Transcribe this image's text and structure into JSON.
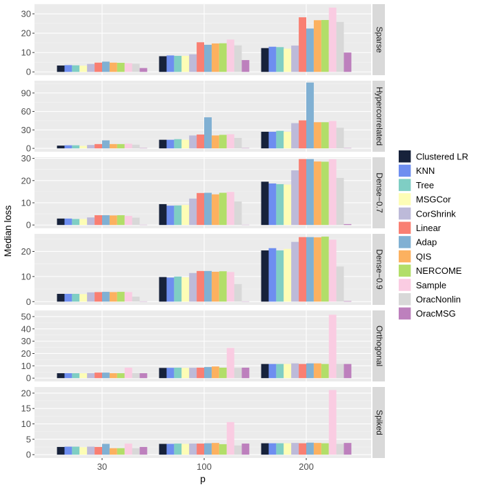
{
  "chart_data": {
    "type": "bar",
    "title": "",
    "xlabel": "p",
    "ylabel": "Median loss",
    "categories": [
      "30",
      "100",
      "200"
    ],
    "series": [
      {
        "name": "Clustered LR",
        "color": "#17223B"
      },
      {
        "name": "KNN",
        "color": "#6E8EF0"
      },
      {
        "name": "Tree",
        "color": "#7FCEC4"
      },
      {
        "name": "MSGCor",
        "color": "#FDFDB6"
      },
      {
        "name": "CorShrink",
        "color": "#BDBAD9"
      },
      {
        "name": "Linear",
        "color": "#F97F72"
      },
      {
        "name": "Adap",
        "color": "#80B0D3"
      },
      {
        "name": "QIS",
        "color": "#FCB160"
      },
      {
        "name": "NERCOME",
        "color": "#B2DE69"
      },
      {
        "name": "Sample",
        "color": "#FACCE2"
      },
      {
        "name": "OracNonlin",
        "color": "#D8D8D8"
      },
      {
        "name": "OracMSG",
        "color": "#BD80BD"
      }
    ],
    "panels": [
      {
        "strip": "Sparse",
        "ylim": [
          -1.7,
          35
        ],
        "yticks": [
          0,
          10,
          20,
          30
        ],
        "values": {
          "30": [
            3.3,
            3.5,
            3.4,
            3.2,
            4.1,
            4.8,
            5.3,
            4.8,
            4.7,
            4.5,
            4.2,
            2.0
          ],
          "100": [
            8.1,
            8.5,
            8.3,
            8.3,
            9.1,
            15.3,
            14.0,
            14.7,
            14.8,
            16.7,
            13.7,
            6.1
          ],
          "200": [
            12.3,
            13.0,
            12.8,
            12.0,
            13.6,
            28.2,
            22.4,
            26.7,
            26.8,
            33.2,
            25.8,
            10.0
          ]
        }
      },
      {
        "strip": "Hypercorrelated",
        "ylim": [
          -5.5,
          110
        ],
        "yticks": [
          0,
          30,
          60,
          90
        ],
        "values": {
          "30": [
            4.5,
            5.0,
            5.0,
            4.0,
            5.5,
            7.0,
            13.0,
            7.0,
            7.0,
            7.5,
            6.0,
            0.5
          ],
          "100": [
            14.0,
            14.0,
            15.0,
            14.0,
            21.0,
            22.5,
            50.5,
            21.0,
            22.0,
            23.0,
            17.0,
            0.5
          ],
          "200": [
            27.0,
            27.0,
            28.5,
            27.0,
            41.0,
            45.5,
            107.0,
            42.5,
            42.5,
            44.5,
            33.5,
            0.5
          ]
        }
      },
      {
        "strip": "Dense−0.7",
        "ylim": [
          -1.5,
          30.5
        ],
        "yticks": [
          0,
          10,
          20,
          30
        ],
        "values": {
          "30": [
            2.9,
            2.9,
            2.7,
            2.7,
            3.4,
            4.4,
            4.4,
            4.3,
            4.4,
            4.1,
            3.3,
            0.1
          ],
          "100": [
            9.4,
            8.7,
            8.8,
            9.0,
            11.9,
            14.4,
            14.5,
            13.8,
            14.5,
            14.9,
            10.6,
            0.1
          ],
          "200": [
            19.5,
            18.7,
            18.4,
            18.2,
            24.6,
            29.7,
            29.7,
            28.6,
            28.5,
            29.6,
            21.2,
            0.4
          ]
        }
      },
      {
        "strip": "Dense−0.9",
        "ylim": [
          -1.3,
          27
        ],
        "yticks": [
          0,
          10,
          20
        ],
        "values": {
          "30": [
            3.1,
            3.1,
            3.1,
            3.0,
            3.7,
            3.8,
            3.9,
            3.8,
            3.9,
            3.8,
            2.0,
            0.1
          ],
          "100": [
            9.8,
            9.6,
            10.0,
            9.7,
            11.4,
            12.2,
            12.2,
            11.9,
            12.1,
            11.8,
            7.0,
            0.1
          ],
          "200": [
            20.4,
            21.3,
            20.4,
            21.0,
            23.8,
            25.7,
            25.7,
            25.6,
            25.9,
            24.7,
            14.0,
            0.2
          ]
        }
      },
      {
        "strip": "Orthogonal",
        "ylim": [
          -2.7,
          55
        ],
        "yticks": [
          0,
          10,
          20,
          30,
          40,
          50
        ],
        "values": {
          "30": [
            4.0,
            4.0,
            4.0,
            4.0,
            4.0,
            4.5,
            4.5,
            4.0,
            4.0,
            8.5,
            4.0,
            4.0
          ],
          "100": [
            8.3,
            8.4,
            8.5,
            8.3,
            8.4,
            8.5,
            9.0,
            9.5,
            8.5,
            24.5,
            8.3,
            8.5
          ],
          "200": [
            11.5,
            11.5,
            11.5,
            11.5,
            12.0,
            11.5,
            12.0,
            12.0,
            11.5,
            51.5,
            11.5,
            11.5
          ]
        }
      },
      {
        "strip": "Spiked",
        "ylim": [
          -1.1,
          22
        ],
        "yticks": [
          0,
          5,
          10,
          15,
          20
        ],
        "values": {
          "30": [
            2.5,
            2.6,
            2.6,
            2.4,
            2.6,
            2.5,
            3.5,
            2.1,
            2.1,
            3.6,
            2.1,
            2.5
          ],
          "100": [
            3.5,
            3.5,
            3.6,
            3.5,
            3.6,
            3.6,
            3.7,
            3.8,
            3.4,
            10.6,
            3.0,
            3.6
          ],
          "200": [
            3.7,
            3.7,
            3.7,
            3.7,
            3.8,
            3.7,
            3.9,
            3.8,
            3.7,
            21.0,
            3.5,
            3.8
          ]
        }
      }
    ],
    "legend_position": "right"
  }
}
